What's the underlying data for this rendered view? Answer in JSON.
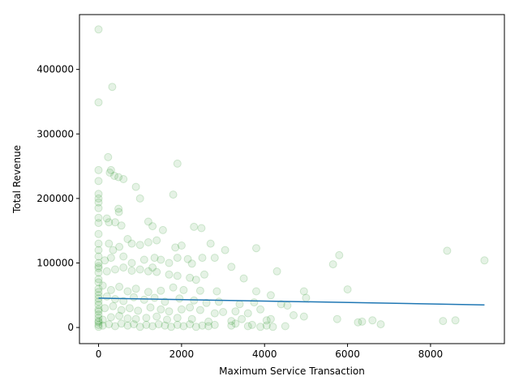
{
  "chart_data": {
    "type": "scatter",
    "xlabel": "Maximum Service Transaction",
    "ylabel": "Total Revenue",
    "xlim": [
      -460,
      9780
    ],
    "ylim": [
      -25000,
      485000
    ],
    "xticks": [
      0,
      2000,
      4000,
      6000,
      8000
    ],
    "yticks": [
      0,
      100000,
      200000,
      300000,
      400000
    ],
    "grid": false,
    "legend": "none",
    "point_color": "#008000",
    "point_opacity": 0.1,
    "line_color": "#1f77b4",
    "points": [
      [
        0,
        462000
      ],
      [
        0,
        349000
      ],
      [
        330,
        373000
      ],
      [
        230,
        264000
      ],
      [
        270,
        240000
      ],
      [
        300,
        244000
      ],
      [
        380,
        235000
      ],
      [
        480,
        233000
      ],
      [
        0,
        244000
      ],
      [
        0,
        227000
      ],
      [
        600,
        230000
      ],
      [
        900,
        218000
      ],
      [
        1900,
        254000
      ],
      [
        0,
        207000
      ],
      [
        0,
        200000
      ],
      [
        0,
        194000
      ],
      [
        0,
        185000
      ],
      [
        480,
        184000
      ],
      [
        490,
        179000
      ],
      [
        1000,
        200000
      ],
      [
        1800,
        206000
      ],
      [
        0,
        170000
      ],
      [
        0,
        162000
      ],
      [
        200,
        169000
      ],
      [
        250,
        163000
      ],
      [
        400,
        163000
      ],
      [
        550,
        158000
      ],
      [
        1200,
        164000
      ],
      [
        1300,
        157000
      ],
      [
        1550,
        151000
      ],
      [
        2300,
        156000
      ],
      [
        2480,
        154000
      ],
      [
        0,
        145000
      ],
      [
        0,
        130000
      ],
      [
        0,
        120000
      ],
      [
        250,
        130000
      ],
      [
        350,
        120000
      ],
      [
        500,
        125000
      ],
      [
        700,
        137000
      ],
      [
        800,
        130000
      ],
      [
        1000,
        128000
      ],
      [
        1200,
        132000
      ],
      [
        1400,
        135000
      ],
      [
        1850,
        124000
      ],
      [
        2000,
        127000
      ],
      [
        2700,
        130000
      ],
      [
        3050,
        120000
      ],
      [
        3800,
        123000
      ],
      [
        0,
        110000
      ],
      [
        0,
        100000
      ],
      [
        150,
        104000
      ],
      [
        300,
        108000
      ],
      [
        600,
        110000
      ],
      [
        800,
        100000
      ],
      [
        1100,
        105000
      ],
      [
        1350,
        108000
      ],
      [
        1500,
        105000
      ],
      [
        1700,
        100000
      ],
      [
        1900,
        108000
      ],
      [
        2150,
        106000
      ],
      [
        2500,
        108000
      ],
      [
        2800,
        108000
      ],
      [
        2250,
        99000
      ],
      [
        3200,
        94000
      ],
      [
        1300,
        93000
      ],
      [
        0,
        92000
      ],
      [
        0,
        85000
      ],
      [
        200,
        87000
      ],
      [
        400,
        90000
      ],
      [
        600,
        93000
      ],
      [
        800,
        88000
      ],
      [
        1000,
        90000
      ],
      [
        1200,
        87000
      ],
      [
        1400,
        86000
      ],
      [
        1700,
        82000
      ],
      [
        1900,
        80000
      ],
      [
        2200,
        77000
      ],
      [
        2350,
        74000
      ],
      [
        2550,
        82000
      ],
      [
        3500,
        76000
      ],
      [
        4300,
        87000
      ],
      [
        5650,
        98000
      ],
      [
        5800,
        112000
      ],
      [
        8400,
        119000
      ],
      [
        9300,
        104000
      ],
      [
        0,
        70000
      ],
      [
        0,
        60000
      ],
      [
        100,
        65000
      ],
      [
        300,
        58000
      ],
      [
        500,
        63000
      ],
      [
        700,
        56000
      ],
      [
        900,
        60000
      ],
      [
        1200,
        55000
      ],
      [
        1500,
        57000
      ],
      [
        1800,
        62000
      ],
      [
        2050,
        58000
      ],
      [
        2450,
        57000
      ],
      [
        2850,
        56000
      ],
      [
        3800,
        56000
      ],
      [
        4950,
        56000
      ],
      [
        4150,
        50000
      ],
      [
        5000,
        46000
      ],
      [
        6000,
        59000
      ],
      [
        0,
        50000
      ],
      [
        0,
        45000
      ],
      [
        200,
        48000
      ],
      [
        400,
        44000
      ],
      [
        600,
        41000
      ],
      [
        850,
        47000
      ],
      [
        1100,
        43000
      ],
      [
        1350,
        46000
      ],
      [
        1600,
        40000
      ],
      [
        1950,
        45000
      ],
      [
        2300,
        42000
      ],
      [
        2600,
        38000
      ],
      [
        2900,
        40000
      ],
      [
        3400,
        36000
      ],
      [
        3750,
        39000
      ],
      [
        4400,
        36000
      ],
      [
        4550,
        34000
      ],
      [
        0,
        35000
      ],
      [
        0,
        28000
      ],
      [
        150,
        30000
      ],
      [
        350,
        33000
      ],
      [
        550,
        27000
      ],
      [
        750,
        30000
      ],
      [
        950,
        26000
      ],
      [
        1250,
        31000
      ],
      [
        1500,
        28000
      ],
      [
        1700,
        25000
      ],
      [
        2000,
        28000
      ],
      [
        2200,
        31000
      ],
      [
        2450,
        27000
      ],
      [
        2800,
        22000
      ],
      [
        3000,
        24000
      ],
      [
        3300,
        25000
      ],
      [
        3600,
        22000
      ],
      [
        3900,
        28000
      ],
      [
        4700,
        19000
      ],
      [
        4950,
        17000
      ],
      [
        0,
        20000
      ],
      [
        0,
        15000
      ],
      [
        100,
        12000
      ],
      [
        300,
        16000
      ],
      [
        500,
        18000
      ],
      [
        700,
        14000
      ],
      [
        900,
        13000
      ],
      [
        1150,
        15000
      ],
      [
        1400,
        17000
      ],
      [
        1650,
        12000
      ],
      [
        1900,
        15000
      ],
      [
        2250,
        13000
      ],
      [
        2650,
        9000
      ],
      [
        3200,
        10000
      ],
      [
        3450,
        13000
      ],
      [
        4050,
        11000
      ],
      [
        4150,
        13000
      ],
      [
        5750,
        13000
      ],
      [
        6250,
        8000
      ],
      [
        6350,
        9000
      ],
      [
        6600,
        11000
      ],
      [
        8300,
        10000
      ],
      [
        8600,
        11000
      ],
      [
        0,
        8000
      ],
      [
        0,
        4000
      ],
      [
        0,
        1000
      ],
      [
        100,
        3000
      ],
      [
        250,
        5000
      ],
      [
        400,
        2000
      ],
      [
        550,
        6000
      ],
      [
        700,
        3000
      ],
      [
        850,
        5000
      ],
      [
        1000,
        1000
      ],
      [
        1150,
        4000
      ],
      [
        1300,
        2000
      ],
      [
        1450,
        5000
      ],
      [
        1600,
        3000
      ],
      [
        1750,
        1000
      ],
      [
        1900,
        4000
      ],
      [
        2050,
        2000
      ],
      [
        2200,
        5000
      ],
      [
        2350,
        1000
      ],
      [
        2500,
        3000
      ],
      [
        2650,
        2000
      ],
      [
        2800,
        4000
      ],
      [
        3200,
        3000
      ],
      [
        3300,
        6000
      ],
      [
        3600,
        2000
      ],
      [
        3700,
        4000
      ],
      [
        3900,
        1000
      ],
      [
        4050,
        3000
      ],
      [
        4200,
        1000
      ],
      [
        4500,
        2000
      ],
      [
        6800,
        5000
      ],
      [
        0,
        95000
      ],
      [
        0,
        75000
      ],
      [
        0,
        55000
      ],
      [
        0,
        40000
      ],
      [
        0,
        25000
      ],
      [
        0,
        10000
      ]
    ],
    "trendline": {
      "x": [
        0,
        9300
      ],
      "y": [
        45500,
        35000
      ]
    }
  }
}
